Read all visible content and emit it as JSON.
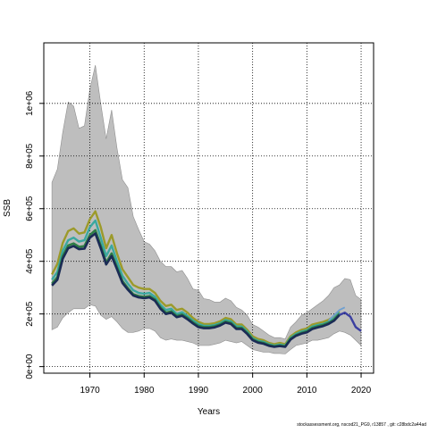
{
  "chart_data": {
    "type": "line",
    "title": "",
    "xlabel": "Years",
    "ylabel": "SSB",
    "xlim": [
      1961.5,
      2022.3
    ],
    "ylim": [
      -25000,
      1230000
    ],
    "grid": true,
    "x_ticks": [
      1970,
      1980,
      1990,
      2000,
      2010,
      2020
    ],
    "y_ticks": [
      {
        "value": 0,
        "label": "0e+00"
      },
      {
        "value": 200000,
        "label": "2e+05"
      },
      {
        "value": 400000,
        "label": "4e+05"
      },
      {
        "value": 600000,
        "label": "6e+05"
      },
      {
        "value": 800000,
        "label": "8e+05"
      },
      {
        "value": 1000000,
        "label": "1e+06"
      }
    ],
    "colors": {
      "band": "#bebebe",
      "gold": "#9c9a2a",
      "teal": "#3aa8a0",
      "green": "#2e7d45",
      "navy": "#1a2b55",
      "tail": "#3b3fa0",
      "tail_light": "#6fa0d0"
    },
    "interval": {
      "x": [
        1963,
        1964,
        1965,
        1966,
        1967,
        1968,
        1969,
        1970,
        1971,
        1972,
        1973,
        1974,
        1975,
        1976,
        1977,
        1978,
        1979,
        1980,
        1981,
        1982,
        1983,
        1984,
        1985,
        1986,
        1987,
        1988,
        1989,
        1990,
        1991,
        1992,
        1993,
        1994,
        1995,
        1996,
        1997,
        1998,
        1999,
        2000,
        2001,
        2002,
        2003,
        2004,
        2005,
        2006,
        2007,
        2008,
        2009,
        2010,
        2011,
        2012,
        2013,
        2014,
        2015,
        2016,
        2017,
        2018,
        2019,
        2020
      ],
      "upper": [
        700000,
        750000,
        890000,
        1005000,
        990000,
        905000,
        915000,
        1055000,
        1145000,
        1000000,
        865000,
        975000,
        830000,
        710000,
        680000,
        570000,
        520000,
        475000,
        465000,
        440000,
        400000,
        380000,
        380000,
        360000,
        365000,
        335000,
        295000,
        290000,
        258000,
        255000,
        245000,
        245000,
        260000,
        250000,
        225000,
        215000,
        195000,
        160000,
        150000,
        135000,
        120000,
        110000,
        110000,
        105000,
        150000,
        170000,
        195000,
        205000,
        220000,
        235000,
        250000,
        270000,
        300000,
        310000,
        335000,
        330000,
        270000,
        255000
      ],
      "lower": [
        140000,
        150000,
        185000,
        205000,
        220000,
        220000,
        220000,
        235000,
        230000,
        195000,
        180000,
        190000,
        170000,
        145000,
        130000,
        130000,
        135000,
        145000,
        145000,
        135000,
        110000,
        100000,
        105000,
        100000,
        100000,
        95000,
        90000,
        80000,
        80000,
        80000,
        85000,
        90000,
        100000,
        95000,
        90000,
        95000,
        80000,
        65000,
        60000,
        55000,
        55000,
        50000,
        50000,
        48000,
        65000,
        80000,
        85000,
        90000,
        100000,
        100000,
        105000,
        110000,
        125000,
        135000,
        130000,
        120000,
        100000,
        80000
      ]
    },
    "x": [
      1963,
      1964,
      1965,
      1966,
      1967,
      1968,
      1969,
      1970,
      1971,
      1972,
      1973,
      1974,
      1975,
      1976,
      1977,
      1978,
      1979,
      1980,
      1981,
      1982,
      1983,
      1984,
      1985,
      1986,
      1987,
      1988,
      1989,
      1990,
      1991,
      1992,
      1993,
      1994,
      1995,
      1996,
      1997,
      1998,
      1999,
      2000,
      2001,
      2002,
      2003,
      2004,
      2005,
      2006,
      2007,
      2008,
      2009,
      2010,
      2011,
      2012,
      2013,
      2014,
      2015,
      2016
    ],
    "series": [
      {
        "color": "gold",
        "values": [
          350000,
          390000,
          470000,
          515000,
          525000,
          505000,
          510000,
          560000,
          590000,
          530000,
          450000,
          500000,
          430000,
          370000,
          340000,
          310000,
          300000,
          295000,
          295000,
          280000,
          250000,
          230000,
          235000,
          215000,
          220000,
          205000,
          185000,
          170000,
          162000,
          162000,
          165000,
          172000,
          185000,
          180000,
          160000,
          160000,
          140000,
          115000,
          105000,
          100000,
          90000,
          85000,
          90000,
          85000,
          115000,
          130000,
          140000,
          145000,
          160000,
          165000,
          170000,
          178000,
          190000,
          210000
        ]
      },
      {
        "color": "teal",
        "values": [
          330000,
          360000,
          440000,
          480000,
          490000,
          475000,
          480000,
          530000,
          555000,
          490000,
          420000,
          460000,
          400000,
          345000,
          315000,
          290000,
          280000,
          277000,
          280000,
          265000,
          235000,
          215000,
          220000,
          200000,
          207000,
          192000,
          175000,
          162000,
          155000,
          155000,
          158000,
          165000,
          177000,
          172000,
          153000,
          152000,
          133000,
          108000,
          98000,
          94000,
          85000,
          80000,
          84000,
          80000,
          110000,
          124000,
          133000,
          138000,
          152000,
          158000,
          162000,
          170000,
          183000,
          205000
        ]
      },
      {
        "color": "green",
        "values": [
          315000,
          340000,
          420000,
          460000,
          468000,
          455000,
          458000,
          500000,
          518000,
          460000,
          395000,
          430000,
          378000,
          325000,
          298000,
          275000,
          268000,
          265000,
          268000,
          255000,
          225000,
          205000,
          210000,
          192000,
          198000,
          185000,
          168000,
          155000,
          150000,
          150000,
          153000,
          160000,
          171000,
          166000,
          147000,
          147000,
          128000,
          104000,
          94000,
          90000,
          82000,
          77000,
          80000,
          77000,
          106000,
          120000,
          128000,
          134000,
          147000,
          153000,
          158000,
          166000,
          178000,
          200000
        ]
      },
      {
        "color": "navy",
        "values": [
          308000,
          330000,
          410000,
          450000,
          458000,
          446000,
          448000,
          490000,
          506000,
          450000,
          388000,
          420000,
          370000,
          318000,
          292000,
          270000,
          263000,
          260000,
          263000,
          250000,
          220000,
          200000,
          205000,
          188000,
          193000,
          180000,
          164000,
          150000,
          146000,
          146000,
          149000,
          156000,
          167000,
          162000,
          143000,
          143000,
          124000,
          100000,
          91000,
          87000,
          79000,
          75000,
          78000,
          75000,
          103000,
          117000,
          125000,
          130000,
          143000,
          149000,
          154000,
          162000,
          174000,
          196000
        ]
      }
    ],
    "tail_light": {
      "x": [
        2014,
        2015,
        2016,
        2017
      ],
      "values": [
        175000,
        195000,
        215000,
        225000
      ]
    },
    "tail": {
      "x": [
        2016,
        2017,
        2018,
        2019,
        2020
      ],
      "values": [
        196000,
        205000,
        190000,
        150000,
        135000
      ]
    }
  },
  "footer": {
    "credit": "stockassessment.org, nscod21_PG9, r13857 , git: c28bdc2a44ad"
  }
}
